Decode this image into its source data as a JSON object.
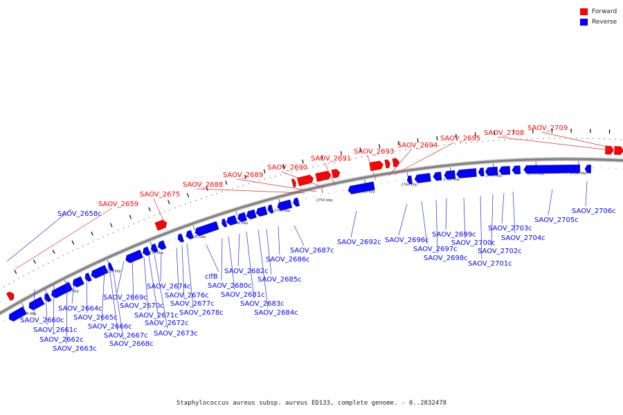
{
  "caption": "Staphylococcus aureus subsp. aureus ED133, complete genome. - 0..2832478",
  "legend": [
    {
      "label": "Forward",
      "color": "#ff0000"
    },
    {
      "label": "Reverse",
      "color": "#0000ff"
    }
  ],
  "colors": {
    "forward": "#ff0000",
    "reverse": "#0000ff",
    "backbone": "#808080",
    "connector_forward": "#e03030",
    "connector_reverse": "#2a2ae0"
  },
  "scale": {
    "unit": "kbp",
    "ticks": [
      "2715 kbp",
      "2720 kbp",
      "2725 kbp",
      "2730 kbp",
      "2735 kbp",
      "2740 kbp",
      "2745 kbp",
      "2750 kbp",
      "2755 kbp",
      "2760 kbp",
      "2765 kbp",
      "2770 kbp",
      "2775 kbp",
      "2780 kbp"
    ]
  },
  "genes_forward": [
    "SAOV_2659",
    "SAOV_2675",
    "SAOV_2688",
    "SAOV_2689",
    "SAOV_2690",
    "SAOV_2691",
    "SAOV_2693",
    "SAOV_2694",
    "SAOV_2695",
    "SAOV_2708",
    "SAOV_2709"
  ],
  "genes_reverse": [
    "SAOV_2658c",
    "SAOV_2660c",
    "SAOV_2661c",
    "SAOV_2662c",
    "SAOV_2663c",
    "SAOV_2664c",
    "SAOV_2665c",
    "SAOV_2666c",
    "SAOV_2667c",
    "SAOV_2668c",
    "SAOV_2669c",
    "SAOV_2670c",
    "SAOV_2671c",
    "SAOV_2672c",
    "SAOV_2673c",
    "SAOV_2674c",
    "SAOV_2676c",
    "SAOV_2677c",
    "SAOV_2678c",
    "clfB",
    "SAOV_2680c",
    "SAOV_2681c",
    "SAOV_2682c",
    "SAOV_2683c",
    "SAOV_2684c",
    "SAOV_2685c",
    "SAOV_2686c",
    "SAOV_2687c",
    "SAOV_2692c",
    "SAOV_2696c",
    "SAOV_2697c",
    "SAOV_2698c",
    "SAOV_2699c",
    "SAOV_2700c",
    "SAOV_2701c",
    "SAOV_2702c",
    "SAOV_2703c",
    "SAOV_2704c",
    "SAOV_2705c",
    "SAOV_2706c"
  ]
}
